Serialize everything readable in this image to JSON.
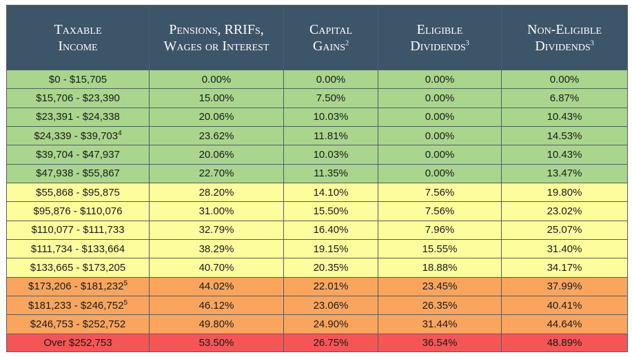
{
  "header": {
    "col1": [
      "Taxable",
      "Income"
    ],
    "col2": [
      "Pensions, RRIFs,",
      "Wages or Interest"
    ],
    "col3": [
      "Capital",
      "Gains",
      "2"
    ],
    "col4": [
      "Eligible",
      "Dividends",
      "3"
    ],
    "col5": [
      "Non-Eligible",
      "Dividends",
      "3"
    ]
  },
  "colors": {
    "header": "#3d5569",
    "green": "#a9d58d",
    "yellow": "#fdfd9e",
    "orange": "#f9a55e",
    "red": "#f55655"
  },
  "rows": [
    {
      "income": "$0 - $15,705",
      "fn": "",
      "pensions": "0.00%",
      "capital": "0.00%",
      "eligible": "0.00%",
      "noneligible": "0.00%",
      "band": "green"
    },
    {
      "income": "$15,706 - $23,390",
      "fn": "",
      "pensions": "15.00%",
      "capital": "7.50%",
      "eligible": "0.00%",
      "noneligible": "6.87%",
      "band": "green"
    },
    {
      "income": "$23,391 - $24,338",
      "fn": "",
      "pensions": "20.06%",
      "capital": "10.03%",
      "eligible": "0.00%",
      "noneligible": "10.43%",
      "band": "green"
    },
    {
      "income": "$24,339 - $39,703",
      "fn": "4",
      "pensions": "23.62%",
      "capital": "11.81%",
      "eligible": "0.00%",
      "noneligible": "14.53%",
      "band": "green"
    },
    {
      "income": "$39,704 - $47,937",
      "fn": "",
      "pensions": "20.06%",
      "capital": "10.03%",
      "eligible": "0.00%",
      "noneligible": "10.43%",
      "band": "green"
    },
    {
      "income": "$47,938 - $55,867",
      "fn": "",
      "pensions": "22.70%",
      "capital": "11.35%",
      "eligible": "0.00%",
      "noneligible": "13.47%",
      "band": "green"
    },
    {
      "income": "$55,868 - $95,875",
      "fn": "",
      "pensions": "28.20%",
      "capital": "14.10%",
      "eligible": "7.56%",
      "noneligible": "19.80%",
      "band": "yellow"
    },
    {
      "income": "$95,876 - $110,076",
      "fn": "",
      "pensions": "31.00%",
      "capital": "15.50%",
      "eligible": "7.56%",
      "noneligible": "23.02%",
      "band": "yellow"
    },
    {
      "income": "$110,077 - $111,733",
      "fn": "",
      "pensions": "32.79%",
      "capital": "16.40%",
      "eligible": "7.96%",
      "noneligible": "25.07%",
      "band": "yellow"
    },
    {
      "income": "$111,734 - $133,664",
      "fn": "",
      "pensions": "38.29%",
      "capital": "19.15%",
      "eligible": "15.55%",
      "noneligible": "31.40%",
      "band": "yellow"
    },
    {
      "income": "$133,665 - $173,205",
      "fn": "",
      "pensions": "40.70%",
      "capital": "20.35%",
      "eligible": "18.88%",
      "noneligible": "34.17%",
      "band": "yellow"
    },
    {
      "income": "$173,206 - $181,232",
      "fn": "5",
      "pensions": "44.02%",
      "capital": "22.01%",
      "eligible": "23.45%",
      "noneligible": "37.99%",
      "band": "orange"
    },
    {
      "income": "$181,233 - $246,752",
      "fn": "5",
      "pensions": "46.12%",
      "capital": "23.06%",
      "eligible": "26.35%",
      "noneligible": "40.41%",
      "band": "orange"
    },
    {
      "income": "$246,753 - $252,752",
      "fn": "",
      "pensions": "49.80%",
      "capital": "24.90%",
      "eligible": "31.44%",
      "noneligible": "44.64%",
      "band": "orange"
    },
    {
      "income": "Over $252,753",
      "fn": "",
      "pensions": "53.50%",
      "capital": "26.75%",
      "eligible": "36.54%",
      "noneligible": "48.89%",
      "band": "red"
    }
  ]
}
